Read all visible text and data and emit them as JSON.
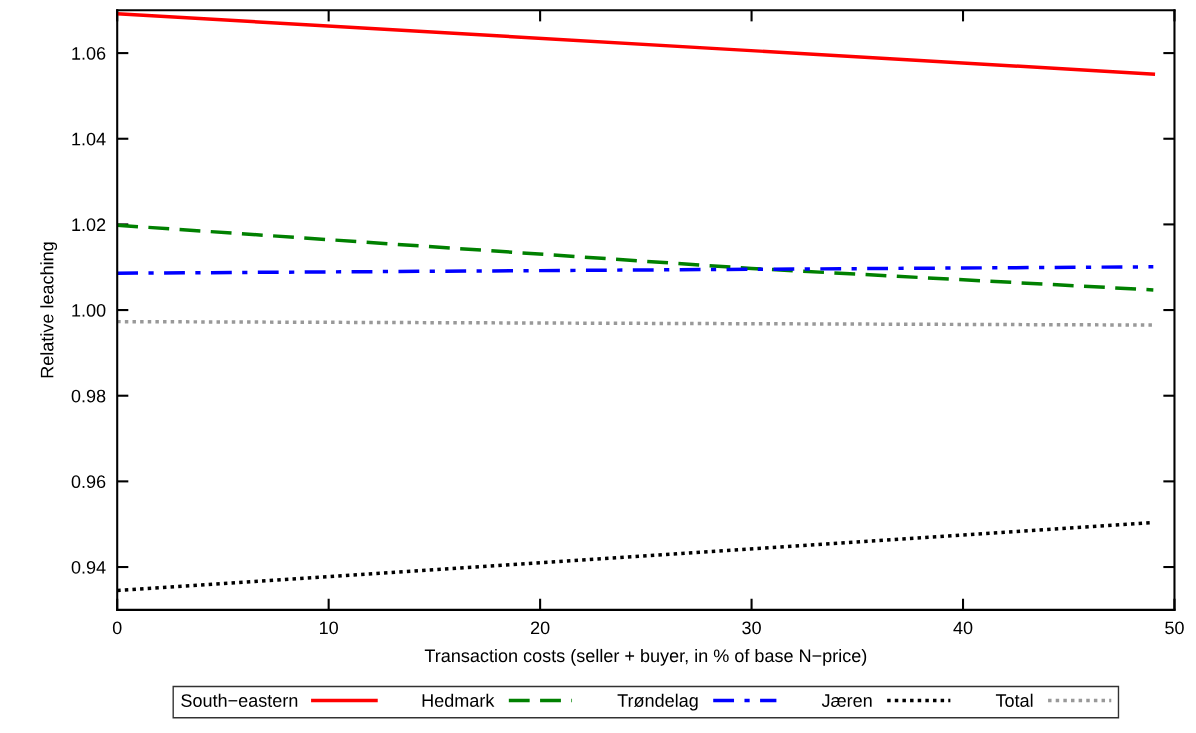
{
  "chart_data": {
    "type": "line",
    "xlabel": "Transaction costs (seller + buyer, in % of base N−price)",
    "ylabel": "Relative leaching",
    "xlim": [
      0,
      50
    ],
    "xticks": [
      0,
      10,
      20,
      30,
      40,
      50
    ],
    "ylim": [
      0.93,
      1.07
    ],
    "yticks": [
      0.94,
      0.96,
      0.98,
      {
        "value": 1.0,
        "label": "1.00"
      },
      {
        "value": 1.02,
        "label": "1.02"
      },
      {
        "value": 1.04,
        "label": "1.04"
      },
      {
        "value": 1.06,
        "label": "1.06"
      }
    ],
    "series": [
      {
        "name": "South−eastern",
        "color": "#ff0000",
        "line_style": "solid",
        "x": [
          0,
          49
        ],
        "values": [
          1.0692,
          1.0551
        ]
      },
      {
        "name": "Hedmark",
        "color": "#008000",
        "line_style": "dashed",
        "x": [
          0,
          30,
          49
        ],
        "values": [
          1.0198,
          1.0097,
          1.0047
        ]
      },
      {
        "name": "Trøndelag",
        "color": "#0000ff",
        "line_style": "dashdot",
        "x": [
          0,
          49
        ],
        "values": [
          1.0086,
          1.0101
        ]
      },
      {
        "name": "Jæren",
        "color": "#000000",
        "line_style": "dotted",
        "x": [
          0,
          49
        ],
        "values": [
          0.9345,
          0.9504
        ]
      },
      {
        "name": "Total",
        "color": "#999999",
        "line_style": "dotted",
        "x": [
          0,
          49
        ],
        "values": [
          0.9973,
          0.9965
        ]
      }
    ],
    "marker": "none",
    "grid": false,
    "legend": "bottom"
  }
}
